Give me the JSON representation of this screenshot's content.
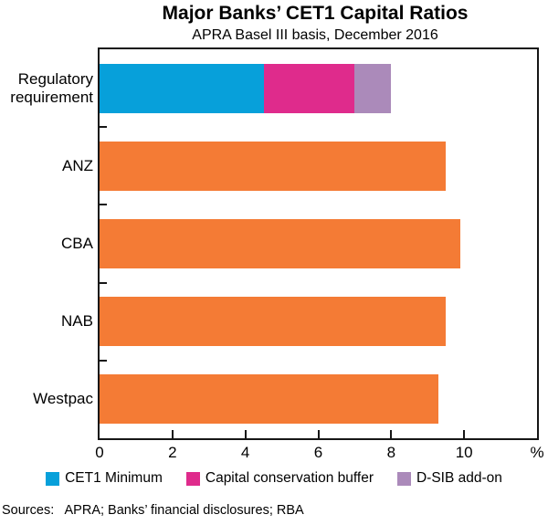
{
  "header": {
    "title": "Major Banks’ CET1 Capital Ratios",
    "subtitle": "APRA Basel III basis, December 2016"
  },
  "chart_data": {
    "type": "bar",
    "orientation": "horizontal",
    "stacked": true,
    "title": "Major Banks’ CET1 Capital Ratios",
    "subtitle": "APRA Basel III basis, December 2016",
    "categories": [
      "Regulatory requirement",
      "ANZ",
      "CBA",
      "NAB",
      "Westpac"
    ],
    "bars": [
      {
        "category": "Regulatory requirement",
        "segments": [
          {
            "legend": "CET1 Minimum",
            "value": 4.5,
            "color": "#07A0DA"
          },
          {
            "legend": "Capital conservation buffer",
            "value": 2.5,
            "color": "#DF2B8C"
          },
          {
            "legend": "D-SIB add-on",
            "value": 1.0,
            "color": "#AB8ABA"
          }
        ],
        "total": 8.0
      },
      {
        "category": "ANZ",
        "segments": [
          {
            "value": 9.5,
            "color": "#F47B35"
          }
        ],
        "total": 9.5
      },
      {
        "category": "CBA",
        "segments": [
          {
            "value": 9.9,
            "color": "#F47B35"
          }
        ],
        "total": 9.9
      },
      {
        "category": "NAB",
        "segments": [
          {
            "value": 9.5,
            "color": "#F47B35"
          }
        ],
        "total": 9.5
      },
      {
        "category": "Westpac",
        "segments": [
          {
            "value": 9.3,
            "color": "#F47B35"
          }
        ],
        "total": 9.3
      }
    ],
    "xlim": [
      0,
      12
    ],
    "xticks": [
      "0",
      "2",
      "4",
      "6",
      "8",
      "10"
    ],
    "x_unit_label": "%",
    "grid": false,
    "legend_position": "bottom",
    "frame_color": "#161616"
  },
  "legend": {
    "items": [
      {
        "label": "CET1 Minimum",
        "color": "#07A0DA"
      },
      {
        "label": "Capital conservation buffer",
        "color": "#DF2B8C"
      },
      {
        "label": "D-SIB add-on",
        "color": "#AB8ABA"
      }
    ]
  },
  "footer": {
    "sources": "Sources:   APRA; Banks’ financial disclosures; RBA"
  }
}
